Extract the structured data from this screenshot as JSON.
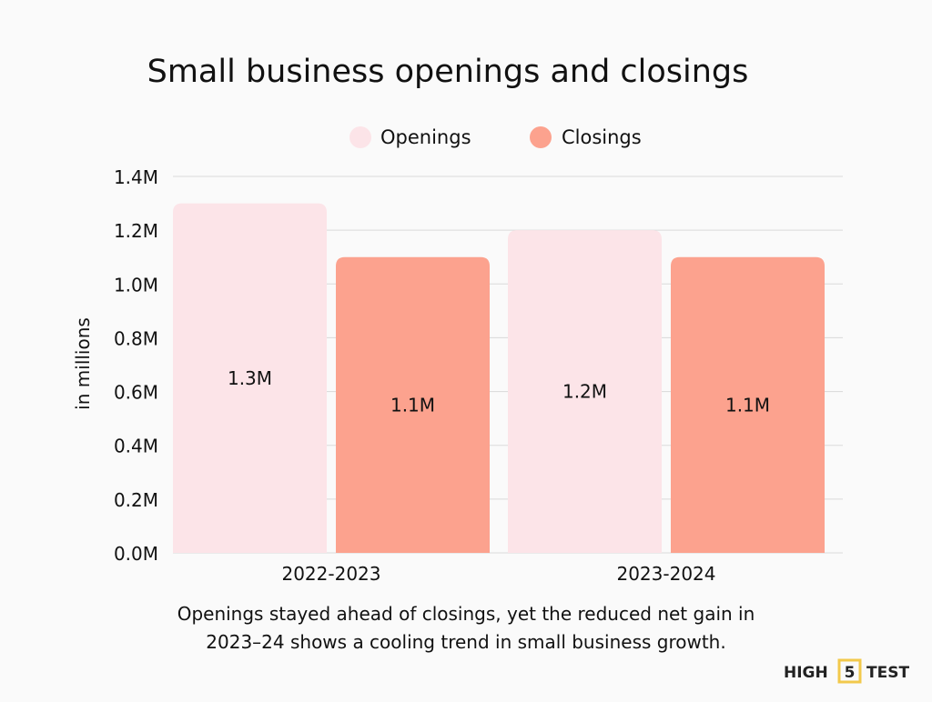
{
  "chart_data": {
    "type": "bar",
    "title": "Small business openings and closings",
    "ylabel": "in millions",
    "xlabel": "",
    "categories": [
      "2022-2023",
      "2023-2024"
    ],
    "series": [
      {
        "name": "Openings",
        "values": [
          1.3,
          1.2
        ],
        "labels": [
          "1.3M",
          "1.2M"
        ],
        "color": "#fce4e8"
      },
      {
        "name": "Closings",
        "values": [
          1.1,
          1.1
        ],
        "labels": [
          "1.1M",
          "1.1M"
        ],
        "color": "#fca28e"
      }
    ],
    "ylim": [
      0,
      1.4
    ],
    "yticks": [
      0,
      0.2,
      0.4,
      0.6,
      0.8,
      1.0,
      1.2,
      1.4
    ],
    "ytick_labels": [
      "0.0M",
      "0.2M",
      "0.4M",
      "0.6M",
      "0.8M",
      "1.0M",
      "1.2M",
      "1.4M"
    ],
    "grid": true,
    "legend": "top-center"
  },
  "caption": {
    "line1": "Openings stayed ahead of closings, yet the reduced net gain in",
    "line2": "2023–24 shows a cooling trend in small business growth."
  },
  "logo": {
    "text_left": "HIGH",
    "text_mid": "5",
    "text_right": "TEST",
    "accent": "#f2c94c"
  }
}
